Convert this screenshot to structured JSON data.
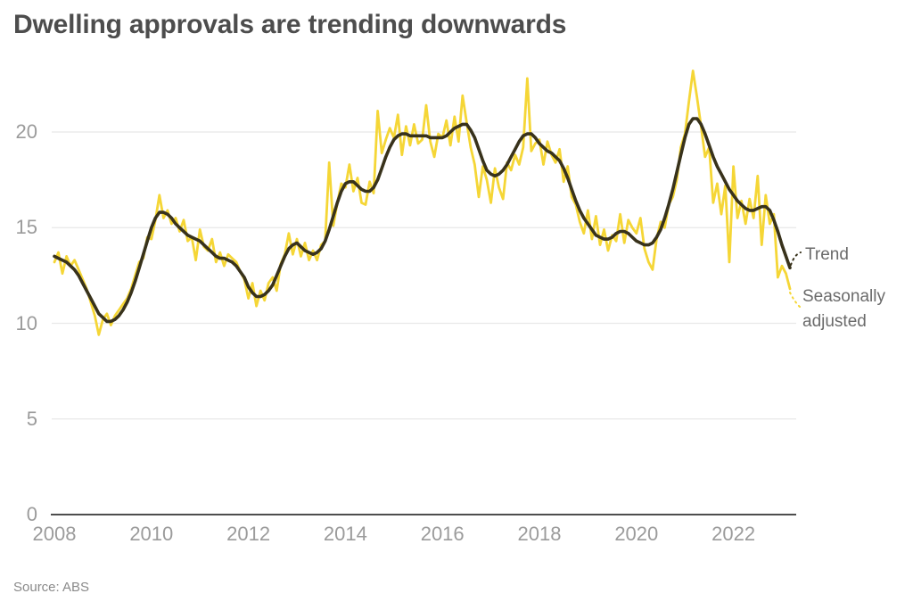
{
  "title": "Dwelling approvals are trending downwards",
  "source": "Source: ABS",
  "legend": {
    "trend": "Trend",
    "seasonally_adjusted": "Seasonally adjusted"
  },
  "colors": {
    "background": "#ffffff",
    "title_text": "#4d4d4d",
    "tick_text": "#9b9b9b",
    "grid_line": "#e8e8e8",
    "axis_line": "#4d4d4d",
    "trend_line": "#38321b",
    "seasonal_line": "#f5d636",
    "legend_text": "#6b6b6b",
    "source_text": "#8a8a8a"
  },
  "chart_data": {
    "type": "line",
    "title": "Dwelling approvals are trending downwards",
    "x_unit": "month",
    "x_start_year": 2008,
    "points_per_year": 12,
    "x_ticks": [
      2008,
      2010,
      2012,
      2014,
      2016,
      2018,
      2020,
      2022
    ],
    "y_ticks": [
      0,
      5,
      10,
      15,
      20
    ],
    "ylim": [
      0,
      23.5
    ],
    "xlim": [
      2008,
      2023.3
    ],
    "grid": "horizontal-only",
    "legend_position": "right-of-line-ends",
    "source": "Source: ABS",
    "series": [
      {
        "name": "Seasonally adjusted",
        "color_key": "seasonal_line",
        "values": [
          13.2,
          13.7,
          12.6,
          13.5,
          13.0,
          13.3,
          12.8,
          12.3,
          11.8,
          11.1,
          10.4,
          9.4,
          10.2,
          10.5,
          9.9,
          10.4,
          10.7,
          11.0,
          11.3,
          11.8,
          12.5,
          13.2,
          13.4,
          14.5,
          14.4,
          15.4,
          16.7,
          15.5,
          15.9,
          15.2,
          15.5,
          14.8,
          15.4,
          14.3,
          14.5,
          13.3,
          14.9,
          14.0,
          13.8,
          14.4,
          13.2,
          13.7,
          13.0,
          13.6,
          13.4,
          13.2,
          12.7,
          12.3,
          11.3,
          12.1,
          10.9,
          11.7,
          11.2,
          12.1,
          12.4,
          11.7,
          13.1,
          13.6,
          14.7,
          13.6,
          14.4,
          13.5,
          14.2,
          13.3,
          13.8,
          13.3,
          14.1,
          14.3,
          18.4,
          15.1,
          16.3,
          17.3,
          17.1,
          18.3,
          16.9,
          17.6,
          16.3,
          16.2,
          17.4,
          16.8,
          21.1,
          18.9,
          19.6,
          20.2,
          19.7,
          20.9,
          18.8,
          20.3,
          19.3,
          20.4,
          19.4,
          19.6,
          21.4,
          19.5,
          18.7,
          19.9,
          19.7,
          20.6,
          19.3,
          20.8,
          19.5,
          21.9,
          20.5,
          19.2,
          18.3,
          16.6,
          18.2,
          17.5,
          16.3,
          18.1,
          17.1,
          16.5,
          18.4,
          18.0,
          18.8,
          18.3,
          19.2,
          22.8,
          19.0,
          19.4,
          19.6,
          18.3,
          19.5,
          18.8,
          18.4,
          19.1,
          17.4,
          18.2,
          16.6,
          16.2,
          15.3,
          14.7,
          15.9,
          14.4,
          15.6,
          14.1,
          14.9,
          13.8,
          14.6,
          14.3,
          15.7,
          14.2,
          15.4,
          15.0,
          14.7,
          15.5,
          13.9,
          13.2,
          12.8,
          14.4,
          15.3,
          15.0,
          16.2,
          16.6,
          17.5,
          19.2,
          19.9,
          21.6,
          23.2,
          21.8,
          20.3,
          18.7,
          19.2,
          16.3,
          17.3,
          15.7,
          17.2,
          13.2,
          18.2,
          15.5,
          16.4,
          15.2,
          16.5,
          15.5,
          17.7,
          14.1,
          16.7,
          15.2,
          15.7,
          12.4,
          13.0,
          12.6,
          11.8
        ]
      },
      {
        "name": "Trend",
        "color_key": "trend_line",
        "values": [
          13.5,
          13.4,
          13.3,
          13.2,
          13.0,
          12.8,
          12.5,
          12.1,
          11.7,
          11.3,
          10.9,
          10.5,
          10.3,
          10.1,
          10.1,
          10.2,
          10.4,
          10.7,
          11.1,
          11.6,
          12.2,
          12.9,
          13.6,
          14.3,
          15.0,
          15.5,
          15.8,
          15.8,
          15.7,
          15.5,
          15.2,
          15.0,
          14.8,
          14.6,
          14.5,
          14.4,
          14.3,
          14.1,
          13.9,
          13.7,
          13.5,
          13.4,
          13.4,
          13.3,
          13.2,
          13.0,
          12.7,
          12.4,
          11.9,
          11.6,
          11.4,
          11.4,
          11.5,
          11.7,
          12.0,
          12.5,
          13.0,
          13.5,
          13.9,
          14.1,
          14.2,
          14.0,
          13.8,
          13.7,
          13.6,
          13.7,
          13.9,
          14.3,
          14.9,
          15.6,
          16.3,
          16.9,
          17.3,
          17.4,
          17.4,
          17.2,
          17.0,
          16.9,
          16.9,
          17.1,
          17.5,
          18.1,
          18.7,
          19.2,
          19.6,
          19.8,
          19.9,
          19.9,
          19.8,
          19.8,
          19.8,
          19.8,
          19.8,
          19.7,
          19.7,
          19.7,
          19.7,
          19.8,
          20.0,
          20.2,
          20.3,
          20.4,
          20.4,
          20.1,
          19.7,
          19.1,
          18.5,
          18.0,
          17.8,
          17.7,
          17.8,
          18.0,
          18.3,
          18.7,
          19.1,
          19.5,
          19.8,
          19.9,
          19.9,
          19.7,
          19.4,
          19.2,
          19.0,
          18.9,
          18.7,
          18.5,
          18.1,
          17.6,
          17.0,
          16.4,
          15.9,
          15.5,
          15.2,
          14.9,
          14.6,
          14.5,
          14.4,
          14.4,
          14.5,
          14.7,
          14.8,
          14.8,
          14.7,
          14.5,
          14.3,
          14.2,
          14.1,
          14.1,
          14.2,
          14.5,
          14.9,
          15.5,
          16.2,
          17.0,
          17.9,
          18.8,
          19.7,
          20.4,
          20.7,
          20.7,
          20.4,
          19.9,
          19.3,
          18.7,
          18.2,
          17.8,
          17.4,
          17.0,
          16.7,
          16.4,
          16.2,
          16.0,
          15.9,
          15.9,
          16.0,
          16.1,
          16.1,
          15.9,
          15.4,
          14.8,
          14.1,
          13.5,
          12.9
        ]
      }
    ]
  }
}
